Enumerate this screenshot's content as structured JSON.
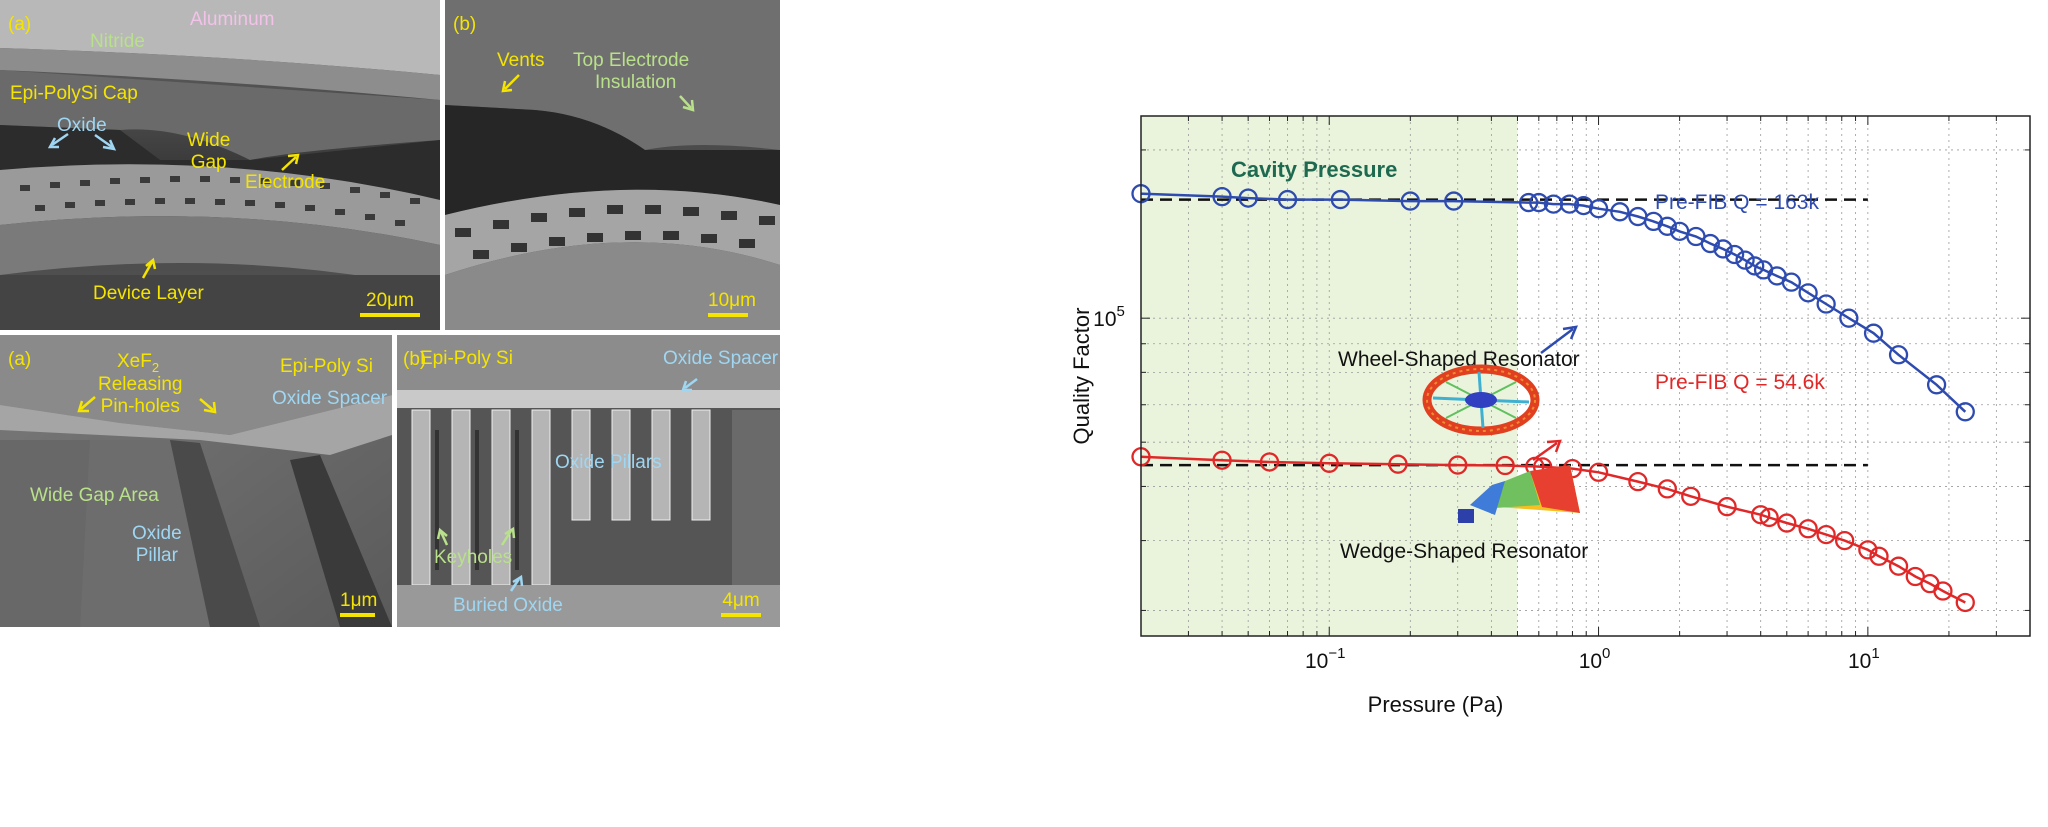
{
  "sem_top_left": {
    "panel_tag": "(a)",
    "labels": {
      "aluminum": "Aluminum",
      "nitride": "Nitride",
      "cap": "Epi-PolySi Cap",
      "oxide": "Oxide",
      "wide_gap": [
        "Wide",
        "Gap"
      ],
      "electrode": "Electrode",
      "device_layer": "Device Layer"
    },
    "scale_bar": "20μm"
  },
  "sem_top_right": {
    "panel_tag": "(b)",
    "labels": {
      "vents": "Vents",
      "top_electrode": [
        "Top Electrode",
        "Insulation"
      ]
    },
    "scale_bar": "10μm"
  },
  "sem_bottom_left": {
    "panel_tag": "(a)",
    "labels": {
      "xef2": [
        "XeF",
        "2"
      ],
      "releasing": [
        "Releasing",
        "Pin-holes"
      ],
      "epi_poly": "Epi-Poly Si",
      "oxide_spacer": "Oxide Spacer",
      "wide_gap_area": "Wide Gap Area",
      "oxide_pillar": [
        "Oxide",
        "Pillar"
      ]
    },
    "scale_bar": "1μm"
  },
  "sem_bottom_right": {
    "panel_tag": "(b)",
    "labels": {
      "epi_poly": "Epi-Poly Si",
      "oxide_spacer": "Oxide Spacer",
      "oxide_pillars": "Oxide Pillars",
      "keyholes": "Keyholes",
      "buried_oxide": "Buried Oxide"
    },
    "scale_bar": "4μm"
  },
  "chart_data": {
    "type": "scatter",
    "xlabel": "Pressure (Pa)",
    "ylabel": "Quality Factor",
    "xscale": "log",
    "yscale": "log",
    "xlim": [
      0.02,
      40
    ],
    "ylim": [
      27000,
      230000
    ],
    "x_ticks": [
      {
        "value": 0.1,
        "base": "10",
        "exp": "−1"
      },
      {
        "value": 1,
        "base": "10",
        "exp": "0"
      },
      {
        "value": 10,
        "base": "10",
        "exp": "1"
      }
    ],
    "y_ticks": [
      {
        "value": 100000,
        "base": "10",
        "exp": "5"
      }
    ],
    "grid": true,
    "shaded_region": {
      "label": "Cavity Pressure",
      "x_range": [
        0.02,
        0.5
      ],
      "color": "#eaf4dc"
    },
    "series": [
      {
        "name": "Wheel-Shaped Resonator",
        "color": "#2e4bb0",
        "reference_q": 163000,
        "reference_label": "Pre-FIB Q = 163k",
        "x": [
          0.02,
          0.04,
          0.05,
          0.07,
          0.11,
          0.2,
          0.29,
          0.55,
          0.6,
          0.68,
          0.78,
          0.88,
          1.0,
          1.2,
          1.4,
          1.6,
          1.8,
          2.0,
          2.3,
          2.6,
          2.9,
          3.2,
          3.5,
          3.8,
          4.1,
          4.6,
          5.2,
          6.0,
          7.0,
          8.5,
          10.5,
          13,
          18,
          23
        ],
        "y": [
          167000,
          165000,
          164000,
          163000,
          163000,
          162000,
          162000,
          161000,
          161000,
          160000,
          160000,
          159000,
          157000,
          155000,
          152000,
          149000,
          146000,
          143000,
          140000,
          136000,
          133000,
          130000,
          127000,
          124000,
          122000,
          119000,
          116000,
          111000,
          106000,
          100000,
          94000,
          86000,
          76000,
          68000
        ]
      },
      {
        "name": "Wedge-Shaped Resonator",
        "color": "#e02828",
        "reference_q": 54600,
        "reference_label": "Pre-FIB Q = 54.6k",
        "x": [
          0.02,
          0.04,
          0.06,
          0.1,
          0.18,
          0.3,
          0.45,
          0.58,
          0.62,
          0.8,
          1.0,
          1.4,
          1.8,
          2.2,
          3.0,
          4.0,
          4.3,
          5.0,
          6.0,
          7.0,
          8.2,
          10.0,
          11.0,
          13.0,
          15.0,
          17.0,
          19.0,
          23.0
        ],
        "y": [
          56500,
          55700,
          55300,
          55000,
          54800,
          54600,
          54500,
          54300,
          54200,
          53800,
          53000,
          51000,
          49500,
          48000,
          46000,
          44500,
          44000,
          43000,
          42000,
          41000,
          40000,
          38500,
          37500,
          36000,
          34500,
          33500,
          32500,
          31000
        ]
      }
    ],
    "annotations": [
      {
        "text": "Cavity Pressure"
      },
      {
        "text": "Wheel-Shaped Resonator"
      },
      {
        "text": "Wedge-Shaped Resonator"
      }
    ]
  }
}
